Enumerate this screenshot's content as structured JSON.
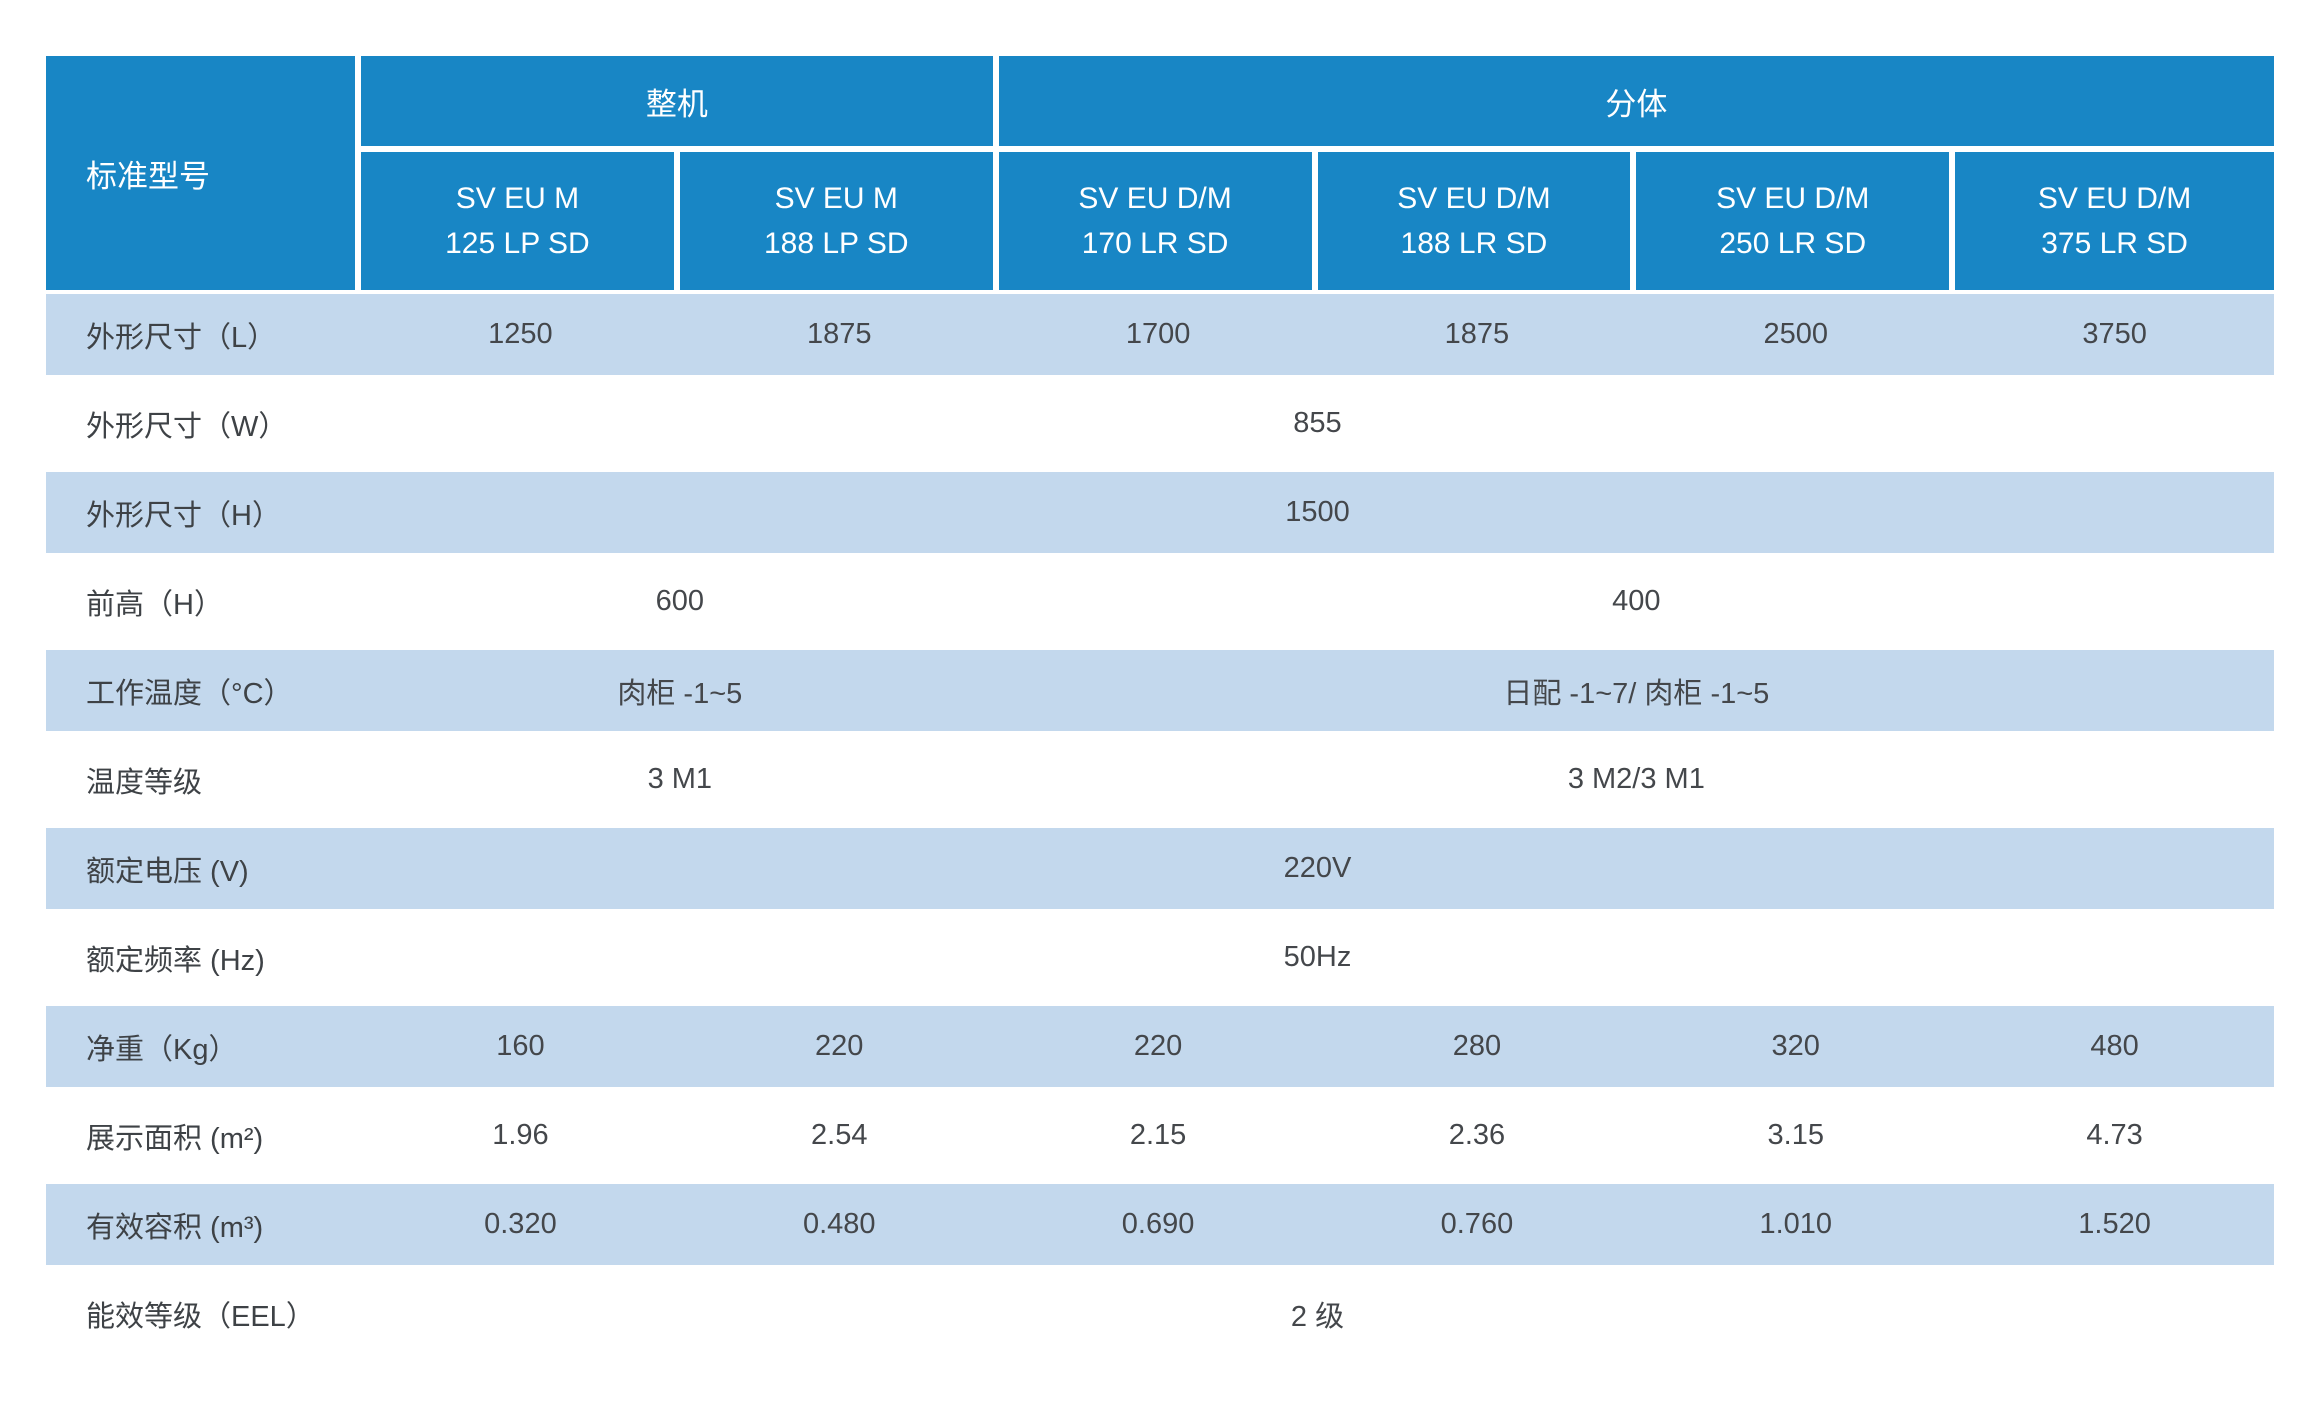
{
  "colors": {
    "header_blue": "#1886c5",
    "row_blue": "#c3d8ed",
    "header_text": "#ffffff",
    "body_text": "#44474b"
  },
  "table": {
    "corner": "标准型号",
    "groups": [
      {
        "label": "整机",
        "span": 2
      },
      {
        "label": "分体",
        "span": 4
      }
    ],
    "models": [
      {
        "line1": "SV EU M",
        "line2": "125 LP SD"
      },
      {
        "line1": "SV EU M",
        "line2": "188 LP SD"
      },
      {
        "line1": "SV EU D/M",
        "line2": "170 LR SD"
      },
      {
        "line1": "SV EU D/M",
        "line2": "188 LR SD"
      },
      {
        "line1": "SV EU D/M",
        "line2": "250 LR SD"
      },
      {
        "line1": "SV EU D/M",
        "line2": "375 LR SD"
      }
    ],
    "rows": [
      {
        "label": "外形尺寸（L）",
        "cells": [
          "1250",
          "1875",
          "1700",
          "1875",
          "2500",
          "3750"
        ]
      },
      {
        "label": "外形尺寸（W）",
        "cells": [
          "855"
        ]
      },
      {
        "label": "外形尺寸（H）",
        "cells": [
          "1500"
        ]
      },
      {
        "label": "前高（H）",
        "cells": [
          "600",
          "400"
        ]
      },
      {
        "label": "工作温度（°C）",
        "cells": [
          "肉柜 -1~5",
          "日配 -1~7/ 肉柜 -1~5"
        ]
      },
      {
        "label": "温度等级",
        "cells": [
          "3 M1",
          "3 M2/3 M1"
        ]
      },
      {
        "label": "额定电压 (V)",
        "cells": [
          "220V"
        ]
      },
      {
        "label": "额定频率 (Hz)",
        "cells": [
          "50Hz"
        ]
      },
      {
        "label": "净重（Kg）",
        "cells": [
          "160",
          "220",
          "220",
          "280",
          "320",
          "480"
        ]
      },
      {
        "label": "展示面积 (m²)",
        "cells": [
          "1.96",
          "2.54",
          "2.15",
          "2.36",
          "3.15",
          "4.73"
        ]
      },
      {
        "label": "有效容积 (m³)",
        "cells": [
          "0.320",
          "0.480",
          "0.690",
          "0.760",
          "1.010",
          "1.520"
        ]
      },
      {
        "label": "能效等级（EEL）",
        "cells": [
          "2 级"
        ]
      }
    ]
  }
}
